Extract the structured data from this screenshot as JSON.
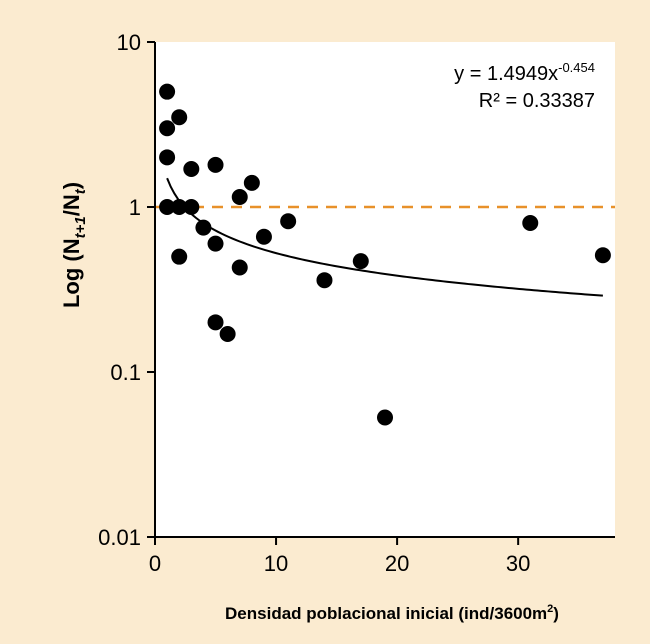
{
  "chart_data": {
    "type": "scatter",
    "title": "",
    "xlabel": {
      "text": "Densidad poblacional inicial (ind/3600m",
      "superscript": "2",
      "suffix": ")"
    },
    "ylabel": {
      "prefix": "Log (N",
      "sub1": "t+1",
      "middle": "/N",
      "sub2": "t",
      "suffix": ")"
    },
    "xlim": [
      0,
      38
    ],
    "ylim": [
      0.01,
      10
    ],
    "yscale": "log",
    "xticks": [
      0,
      10,
      20,
      30
    ],
    "xtick_labels": [
      "0",
      "10",
      "20",
      "30"
    ],
    "yticks": [
      0.01,
      0.1,
      1,
      10
    ],
    "ytick_labels": [
      "0.01",
      "0.1",
      "1",
      "10"
    ],
    "grid": false,
    "series": [
      {
        "points": [
          [
            1,
            5.0
          ],
          [
            1,
            3.0
          ],
          [
            1,
            2.0
          ],
          [
            1,
            1.0
          ],
          [
            2,
            3.5
          ],
          [
            2,
            1.0
          ],
          [
            2,
            0.5
          ],
          [
            3,
            1.7
          ],
          [
            3,
            1.0
          ],
          [
            4,
            0.75
          ],
          [
            5,
            1.8
          ],
          [
            5,
            0.6
          ],
          [
            5,
            0.2
          ],
          [
            6,
            0.17
          ],
          [
            7,
            1.15
          ],
          [
            7,
            0.43
          ],
          [
            8,
            1.4
          ],
          [
            9,
            0.66
          ],
          [
            11,
            0.82
          ],
          [
            14,
            0.36
          ],
          [
            17,
            0.47
          ],
          [
            19,
            0.053
          ],
          [
            31,
            0.8
          ],
          [
            37,
            0.51
          ]
        ],
        "color": "#000000"
      }
    ],
    "trendline": {
      "type": "power",
      "a": 1.4949,
      "b": -0.454,
      "x_range": [
        1,
        37
      ],
      "equation_label": "y = 1.4949x",
      "equation_exponent": "-0.454",
      "r2_label": "R² = 0.33387",
      "color": "#000000"
    },
    "reference_line": {
      "y": 1,
      "style": "dashed",
      "color": "#e8912a"
    }
  }
}
